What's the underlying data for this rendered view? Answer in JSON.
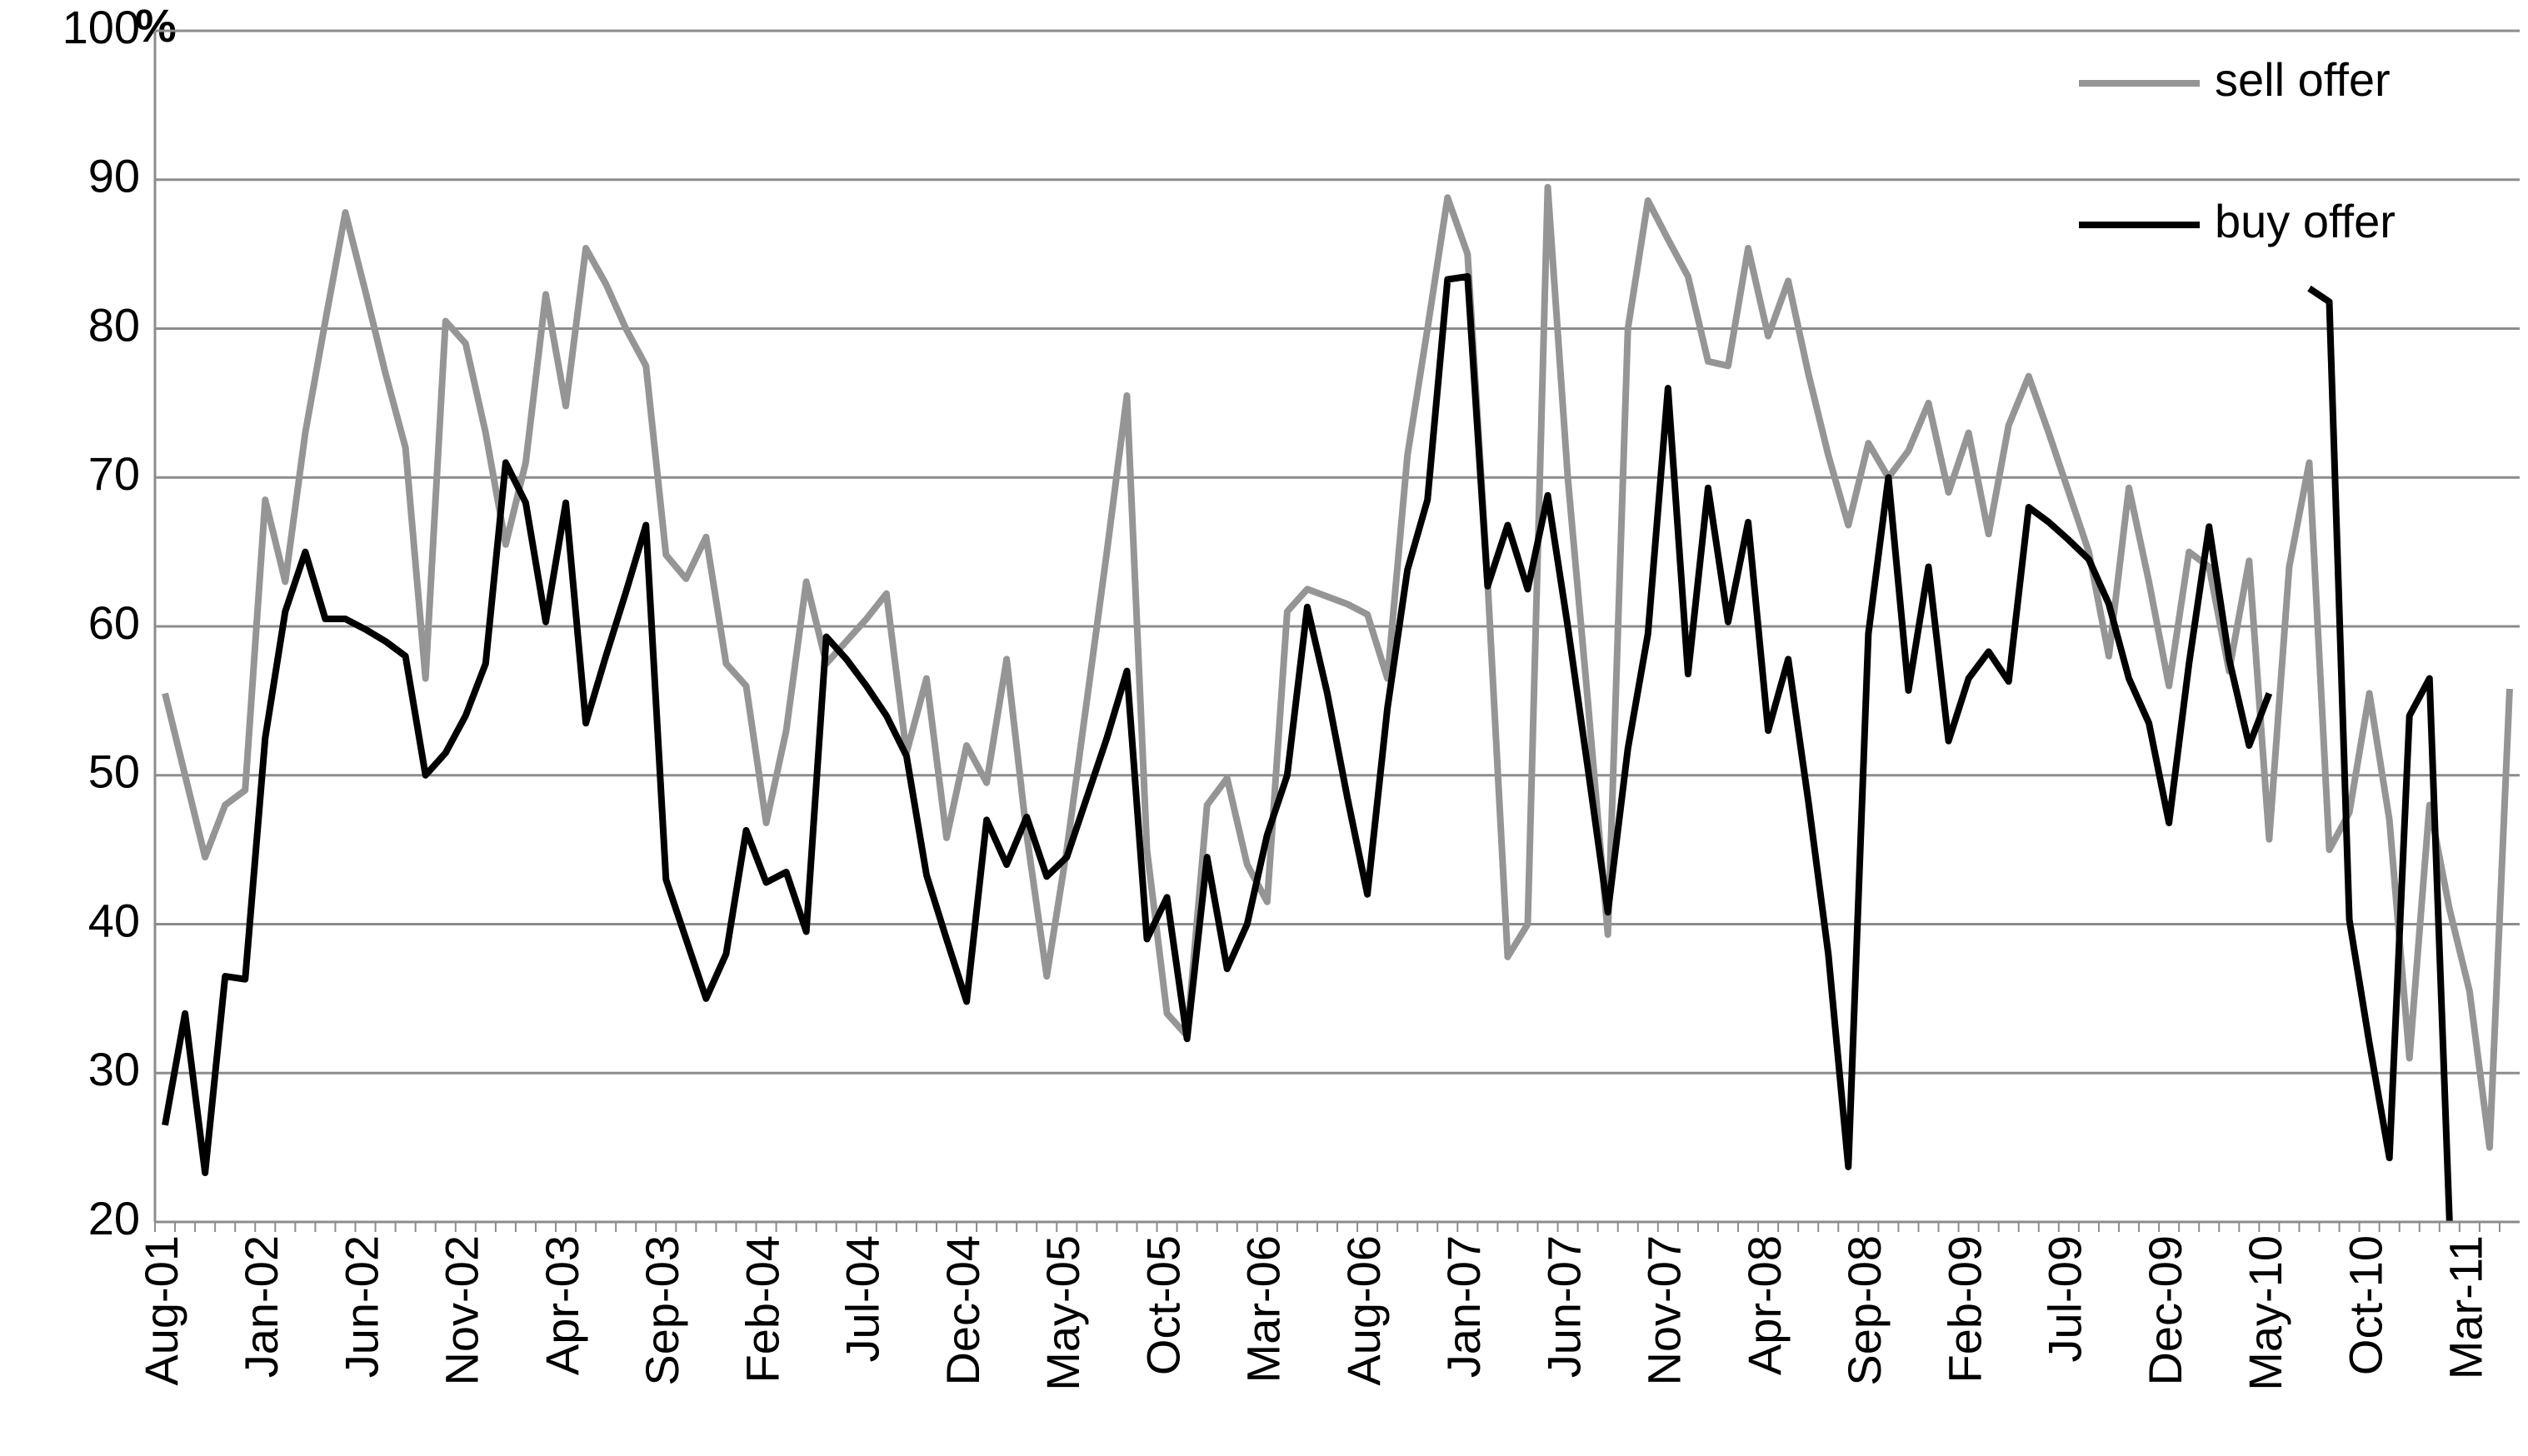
{
  "chart_data": {
    "type": "line",
    "y_label": "%",
    "categories": [
      "Aug-01",
      null,
      null,
      null,
      null,
      "Jan-02",
      null,
      null,
      null,
      null,
      "Jun-02",
      null,
      null,
      null,
      null,
      "Nov-02",
      null,
      null,
      null,
      null,
      "Apr-03",
      null,
      null,
      null,
      null,
      "Sep-03",
      null,
      null,
      null,
      null,
      "Feb-04",
      null,
      null,
      null,
      null,
      "Jul-04",
      null,
      null,
      null,
      null,
      "Dec-04",
      null,
      null,
      null,
      null,
      "May-05",
      null,
      null,
      null,
      null,
      "Oct-05",
      null,
      null,
      null,
      null,
      "Mar-06",
      null,
      null,
      null,
      null,
      "Aug-06",
      null,
      null,
      null,
      null,
      "Jan-07",
      null,
      null,
      null,
      null,
      "Jun-07",
      null,
      null,
      null,
      null,
      "Nov-07",
      null,
      null,
      null,
      null,
      "Apr-08",
      null,
      null,
      null,
      null,
      "Sep-08",
      null,
      null,
      null,
      null,
      "Feb-09",
      null,
      null,
      null,
      null,
      "Jul-09",
      null,
      null,
      null,
      null,
      "Dec-09",
      null,
      null,
      null,
      null,
      "May-10",
      null,
      null,
      null,
      null,
      "Oct-10",
      null,
      null,
      null,
      null,
      "Mar-11",
      null,
      null
    ],
    "series": [
      {
        "name": "sell offer",
        "color": "#959595",
        "values": [
          55.5,
          50,
          44.5,
          48,
          49,
          68.5,
          63,
          73,
          80.5,
          87.8,
          82.5,
          77,
          72,
          56.5,
          80.5,
          79,
          73,
          65.5,
          71,
          82.3,
          74.8,
          85.4,
          83,
          80,
          77.5,
          64.8,
          63.2,
          66,
          57.5,
          56,
          46.8,
          53,
          63,
          57.5,
          59,
          60.5,
          62.2,
          51.5,
          56.5,
          45.8,
          52,
          49.5,
          57.8,
          46,
          36.5,
          45,
          55,
          65,
          75.5,
          45,
          34,
          32.5,
          48,
          49.8,
          44,
          41.5,
          61,
          62.5,
          62,
          61.5,
          60.8,
          56.5,
          71.5,
          80,
          88.8,
          85,
          63,
          37.8,
          40,
          89.5,
          70,
          55,
          39.3,
          80,
          88.6,
          86,
          83.5,
          77.8,
          77.5,
          85.4,
          79.5,
          83.2,
          77,
          71.5,
          66.8,
          72.3,
          70,
          71.8,
          75,
          69,
          73,
          66.2,
          73.5,
          76.8,
          73,
          69,
          65,
          58,
          69.3,
          63,
          56,
          65,
          64,
          57,
          64.4,
          45.7,
          64,
          71,
          45,
          47.5,
          55.5,
          47,
          31,
          48,
          41,
          35.5,
          25,
          55.8
        ]
      },
      {
        "name": "buy offer",
        "color": "#000000",
        "values": [
          26.5,
          34,
          23.3,
          36.5,
          36.3,
          52.5,
          61,
          65,
          60.5,
          60.5,
          59.8,
          59,
          58,
          50,
          51.5,
          54,
          57.5,
          71,
          68.3,
          60.3,
          68.3,
          53.5,
          58,
          62.3,
          66.8,
          43,
          39,
          35,
          38,
          46.3,
          42.8,
          43.5,
          39.5,
          59.3,
          57.8,
          56,
          54,
          51.3,
          43.3,
          39,
          34.8,
          47,
          44,
          47.2,
          43.2,
          44.5,
          48.5,
          52.5,
          57,
          39,
          41.8,
          32.3,
          44.5,
          37,
          40,
          46,
          50,
          61.3,
          55.5,
          48.5,
          42,
          54.5,
          63.8,
          68.5,
          83.3,
          83.5,
          62.7,
          66.8,
          62.5,
          68.8,
          60,
          50.5,
          40.8,
          51.8,
          59.5,
          76,
          56.8,
          69.3,
          60.3,
          67,
          53,
          57.8,
          48.3,
          38,
          23.7,
          59.5,
          70,
          55.7,
          64,
          52.3,
          56.5,
          58.3,
          56.3,
          68,
          67,
          65.8,
          64.5,
          61.5,
          56.5,
          53.5,
          46.8,
          57.5,
          66.7,
          57.8,
          52,
          55.5,
          null,
          82.7,
          81.8,
          40.3,
          32,
          24.3,
          54,
          56.5,
          20,
          null,
          null,
          null
        ]
      }
    ],
    "ylim": [
      20,
      100
    ],
    "yticks": [
      20,
      30,
      40,
      50,
      60,
      70,
      80,
      90,
      100
    ],
    "grid": true,
    "legend": "top-right"
  }
}
